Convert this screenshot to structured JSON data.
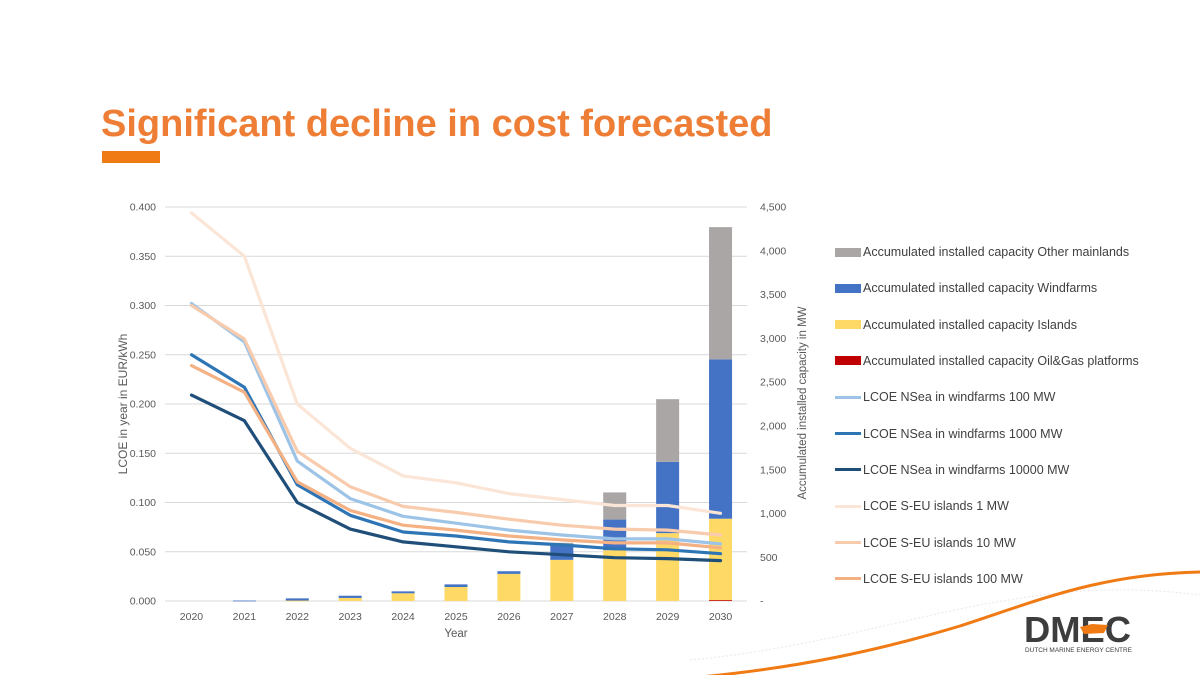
{
  "slide": {
    "title": "Significant decline in cost forecasted",
    "accent_color": "#F07A13"
  },
  "logo": {
    "name": "DMEC",
    "tagline": "DUTCH MARINE ENERGY CENTRE"
  },
  "chart_data": {
    "type": "line",
    "secondary_type": "bar",
    "title": "",
    "xlabel": "Year",
    "ylabel": "LCOE in year in EUR/kWh",
    "y2label": "Accumulated installed capacity in MW",
    "categories": [
      "2020",
      "2021",
      "2022",
      "2023",
      "2024",
      "2025",
      "2026",
      "2027",
      "2028",
      "2029",
      "2030"
    ],
    "ylim": [
      0,
      0.4
    ],
    "y2lim": [
      0,
      4500
    ],
    "yticks": [
      "0.000",
      "0.050",
      "0.100",
      "0.150",
      "0.200",
      "0.250",
      "0.300",
      "0.350",
      "0.400"
    ],
    "y2ticks": [
      "-",
      "500",
      "1,000",
      "1,500",
      "2,000",
      "2,500",
      "3,000",
      "3,500",
      "4,000",
      "4,500"
    ],
    "grid": true,
    "legend_position": "right",
    "series": [
      {
        "name": "Accumulated installed capacity Other mainlands",
        "kind": "bar",
        "axis": "right",
        "stacked": true,
        "color": "#A9A6A5",
        "values": [
          0,
          0,
          0,
          0,
          0,
          0,
          0,
          30,
          310,
          715,
          1510
        ]
      },
      {
        "name": "Accumulated installed capacity Windfarms",
        "kind": "bar",
        "axis": "right",
        "stacked": true,
        "color": "#4472C4",
        "values": [
          0,
          5,
          25,
          25,
          22,
          30,
          30,
          165,
          350,
          815,
          1820
        ]
      },
      {
        "name": "Accumulated installed capacity Islands",
        "kind": "bar",
        "axis": "right",
        "stacked": true,
        "color": "#FFD966",
        "values": [
          0,
          0,
          5,
          35,
          88,
          160,
          310,
          470,
          580,
          775,
          930
        ]
      },
      {
        "name": "Accumulated installed capacity Oil&Gas platforms",
        "kind": "bar",
        "axis": "right",
        "stacked": true,
        "color": "#C00000",
        "values": [
          0,
          0,
          0,
          0,
          0,
          0,
          0,
          0,
          0,
          0,
          10
        ]
      },
      {
        "name": "LCOE NSea in windfarms 100 MW",
        "kind": "line",
        "axis": "left",
        "color": "#9DC3E6",
        "values": [
          0.302,
          0.263,
          0.142,
          0.104,
          0.086,
          0.079,
          0.072,
          0.067,
          0.063,
          0.063,
          0.058
        ]
      },
      {
        "name": "LCOE NSea in windfarms 1000 MW",
        "kind": "line",
        "axis": "left",
        "color": "#2E75B6",
        "values": [
          0.25,
          0.217,
          0.118,
          0.087,
          0.07,
          0.066,
          0.06,
          0.057,
          0.053,
          0.052,
          0.048
        ]
      },
      {
        "name": "LCOE NSea in windfarms 10000 MW",
        "kind": "line",
        "axis": "left",
        "color": "#1F4E79",
        "values": [
          0.209,
          0.183,
          0.1,
          0.073,
          0.06,
          0.055,
          0.05,
          0.047,
          0.044,
          0.043,
          0.041
        ]
      },
      {
        "name": "LCOE S-EU islands 1 MW",
        "kind": "line",
        "axis": "left",
        "color": "#FBE5D6",
        "values": [
          0.394,
          0.35,
          0.2,
          0.155,
          0.127,
          0.12,
          0.109,
          0.103,
          0.097,
          0.097,
          0.089
        ]
      },
      {
        "name": "LCOE S-EU islands 10 MW",
        "kind": "line",
        "axis": "left",
        "color": "#F8CBAD",
        "values": [
          0.3,
          0.266,
          0.152,
          0.116,
          0.096,
          0.09,
          0.083,
          0.077,
          0.073,
          0.072,
          0.067
        ]
      },
      {
        "name": "LCOE S-EU islands 100 MW",
        "kind": "line",
        "axis": "left",
        "color": "#F4B183",
        "values": [
          0.239,
          0.212,
          0.121,
          0.092,
          0.077,
          0.072,
          0.066,
          0.062,
          0.059,
          0.059,
          0.054
        ]
      }
    ]
  }
}
